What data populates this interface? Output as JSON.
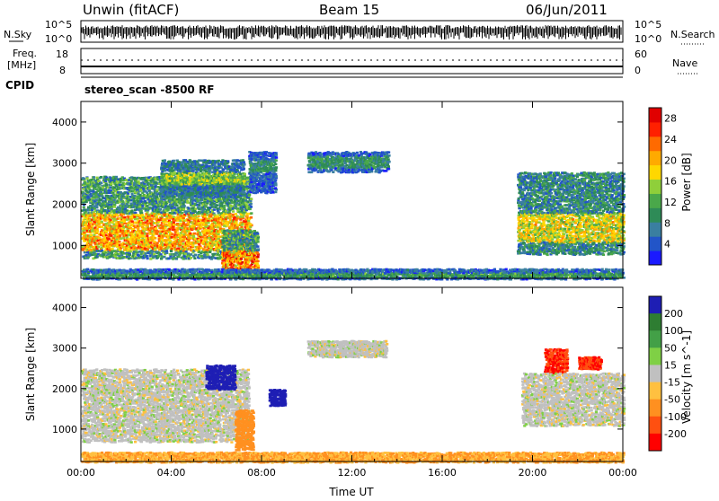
{
  "header": {
    "station": "Unwin (fitACF)",
    "beam": "Beam 15",
    "date": "06/Jun/2011"
  },
  "top_panels": {
    "nsky_label": "N.Sky",
    "nsky_tick_high": "10^5",
    "nsky_tick_low": "10^0",
    "nsearch_label": "N.Search",
    "nsearch_tick_high": "10^5",
    "nsearch_tick_low": "10^0",
    "freq_label": "Freq.",
    "freq_unit": "[MHz]",
    "freq_tick_high": "18",
    "freq_tick_low": "8",
    "nave_label": "Nave",
    "nave_tick_high": "60",
    "nave_tick_low": "0",
    "cpid_label": "CPID",
    "cpid_value": "stereo_scan  -8500 RF"
  },
  "chart_data": [
    {
      "type": "heatmap",
      "name": "Power",
      "xlabel": "Time UT",
      "ylabel": "Slant Range [km]",
      "x_ticks": [
        "00:00",
        "04:00",
        "08:00",
        "12:00",
        "16:00",
        "20:00",
        "00:00"
      ],
      "xlim_hours": [
        0,
        24
      ],
      "y_ticks": [
        1000,
        2000,
        3000,
        4000
      ],
      "ylim": [
        200,
        4500
      ],
      "colorbar": {
        "label": "Power [dB]",
        "ticks": [
          4,
          8,
          12,
          16,
          20,
          24,
          28
        ],
        "range": [
          0,
          30
        ],
        "colors": [
          "#1a1aff",
          "#2255c8",
          "#3a7fa0",
          "#2e8b57",
          "#4aa84a",
          "#8fcf3a",
          "#ffd700",
          "#ffaa00",
          "#ff6a00",
          "#ff2000",
          "#e00000"
        ]
      },
      "regions": [
        {
          "t": [
            0.0,
            7.5
          ],
          "r": [
            700,
            2700
          ],
          "core": [
            900,
            1800
          ],
          "peak_db": 26
        },
        {
          "t": [
            3.5,
            7.2
          ],
          "r": [
            2200,
            3100
          ],
          "core": [
            2500,
            2800
          ],
          "peak_db": 18
        },
        {
          "t": [
            6.2,
            7.8
          ],
          "r": [
            300,
            1400
          ],
          "core": [
            400,
            900
          ],
          "peak_db": 28
        },
        {
          "t": [
            7.4,
            8.6
          ],
          "r": [
            2300,
            3300
          ],
          "core": [
            2800,
            3100
          ],
          "peak_db": 12
        },
        {
          "t": [
            10.0,
            13.6
          ],
          "r": [
            2800,
            3300
          ],
          "core": [
            2900,
            3200
          ],
          "peak_db": 12
        },
        {
          "t": [
            19.3,
            24.0
          ],
          "r": [
            800,
            2800
          ],
          "core": [
            1100,
            1800
          ],
          "peak_db": 22
        },
        {
          "t": [
            0.0,
            24.0
          ],
          "r": [
            200,
            450
          ],
          "core": [
            250,
            350
          ],
          "peak_db": 14
        }
      ]
    },
    {
      "type": "heatmap",
      "name": "Velocity",
      "xlabel": "Time UT",
      "ylabel": "Slant Range [km]",
      "x_ticks": [
        "00:00",
        "04:00",
        "08:00",
        "12:00",
        "16:00",
        "20:00",
        "00:00"
      ],
      "xlim_hours": [
        0,
        24
      ],
      "y_ticks": [
        1000,
        2000,
        3000,
        4000
      ],
      "ylim": [
        200,
        4500
      ],
      "colorbar": {
        "label": "Velocity [m s^-1]",
        "ticks": [
          200,
          100,
          50,
          15,
          -15,
          -50,
          -100,
          -200
        ],
        "colors": [
          "#1e1eb4",
          "#2e7d32",
          "#43a047",
          "#7fd045",
          "#c0c0c0",
          "#ffc040",
          "#ff9020",
          "#ff5010",
          "#ff0000"
        ]
      },
      "regions": [
        {
          "t": [
            0.0,
            7.4
          ],
          "r": [
            700,
            2500
          ],
          "velocity": 0
        },
        {
          "t": [
            5.5,
            6.8
          ],
          "r": [
            2000,
            2600
          ],
          "velocity": 220
        },
        {
          "t": [
            6.8,
            7.6
          ],
          "r": [
            500,
            1500
          ],
          "velocity": -80
        },
        {
          "t": [
            8.3,
            9.0
          ],
          "r": [
            1600,
            2000
          ],
          "velocity": 220
        },
        {
          "t": [
            10.0,
            13.5
          ],
          "r": [
            2800,
            3200
          ],
          "velocity": 0
        },
        {
          "t": [
            20.5,
            21.5
          ],
          "r": [
            2400,
            3000
          ],
          "velocity": -200
        },
        {
          "t": [
            22.0,
            23.0
          ],
          "r": [
            2500,
            2800
          ],
          "velocity": -200
        },
        {
          "t": [
            19.5,
            24.0
          ],
          "r": [
            1100,
            2400
          ],
          "velocity": 0
        },
        {
          "t": [
            0.0,
            24.0
          ],
          "r": [
            200,
            450
          ],
          "velocity": -50
        }
      ]
    }
  ]
}
